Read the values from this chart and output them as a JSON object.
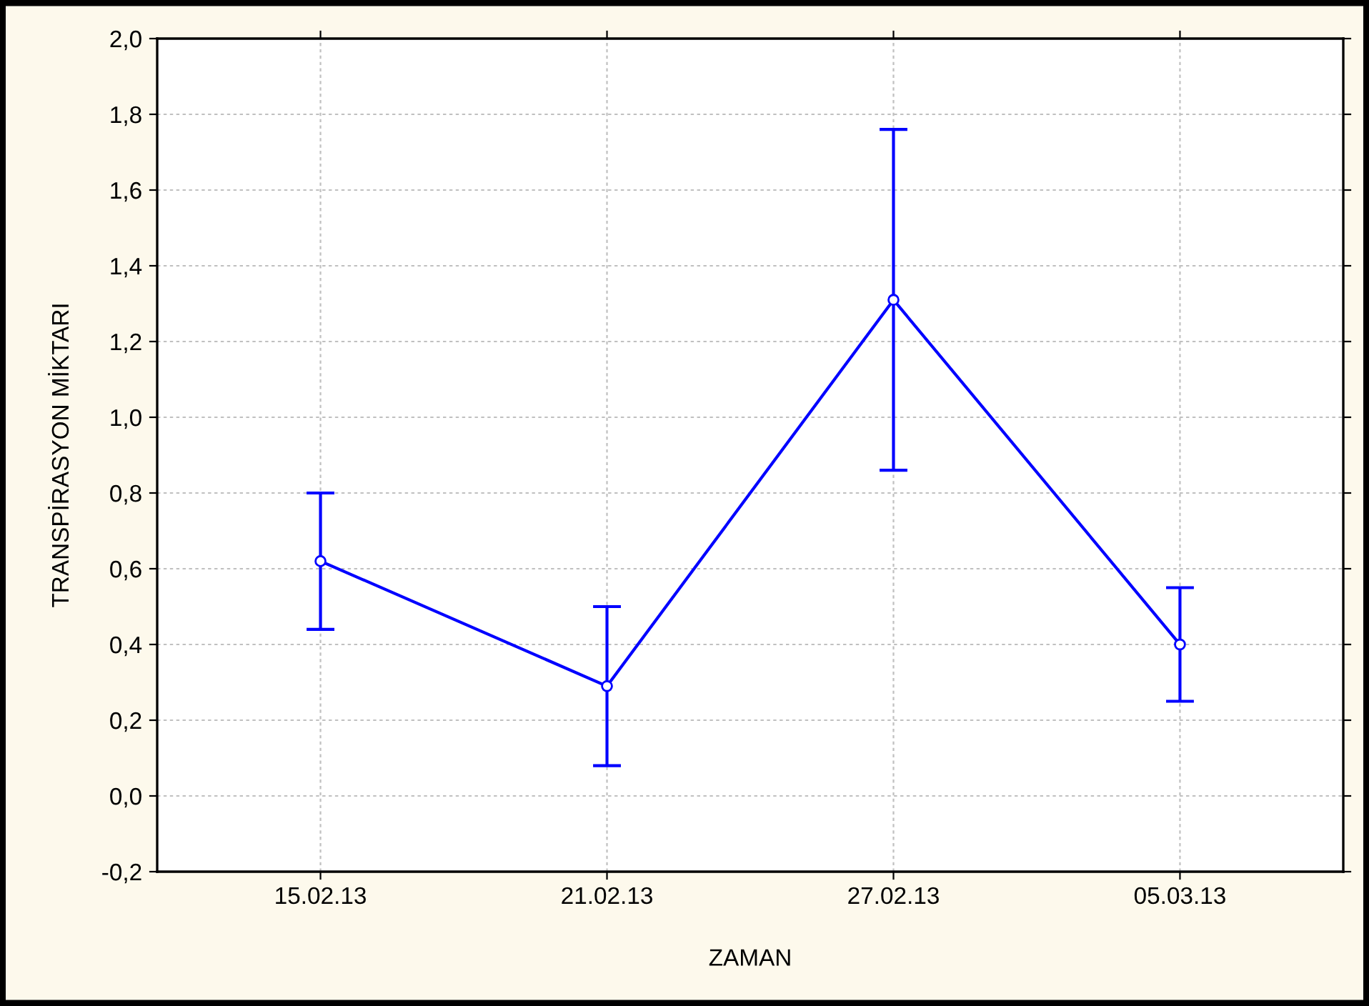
{
  "chart_data": {
    "type": "line",
    "xlabel": "ZAMAN",
    "ylabel": "TRANSPİRASYON MİKTARI",
    "categories": [
      "15.02.13",
      "21.02.13",
      "27.02.13",
      "05.03.13"
    ],
    "series": [
      {
        "color": "#0000ff",
        "values": [
          0.62,
          0.29,
          1.31,
          0.4
        ],
        "errors": [
          0.18,
          0.21,
          0.45,
          0.15
        ]
      }
    ],
    "ylim": [
      -0.2,
      2.0
    ],
    "yticks": [
      {
        "value": -0.2,
        "label": "-0,2"
      },
      {
        "value": 0.0,
        "label": "0,0"
      },
      {
        "value": 0.2,
        "label": "0,2"
      },
      {
        "value": 0.4,
        "label": "0,4"
      },
      {
        "value": 0.6,
        "label": "0,6"
      },
      {
        "value": 0.8,
        "label": "0,8"
      },
      {
        "value": 1.0,
        "label": "1,0"
      },
      {
        "value": 1.2,
        "label": "1,2"
      },
      {
        "value": 1.4,
        "label": "1,4"
      },
      {
        "value": 1.6,
        "label": "1,6"
      },
      {
        "value": 1.8,
        "label": "1,8"
      },
      {
        "value": 2.0,
        "label": "2,0"
      }
    ],
    "grid": true,
    "marker": "circle",
    "line_style": "solid"
  }
}
